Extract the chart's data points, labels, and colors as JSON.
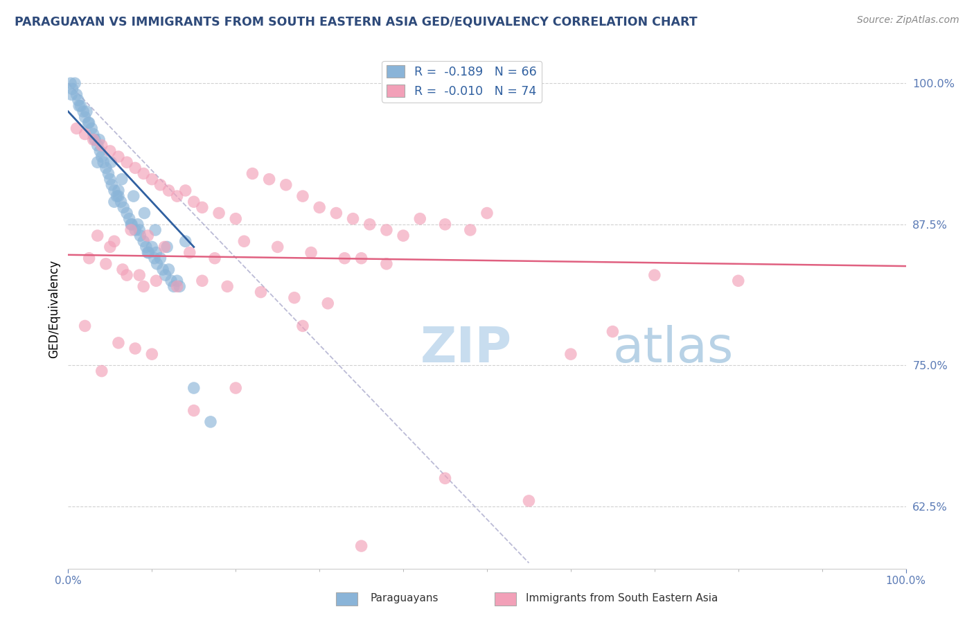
{
  "title": "PARAGUAYAN VS IMMIGRANTS FROM SOUTH EASTERN ASIA GED/EQUIVALENCY CORRELATION CHART",
  "source": "Source: ZipAtlas.com",
  "ylabel": "GED/Equivalency",
  "yticks": [
    62.5,
    75.0,
    87.5,
    100.0
  ],
  "ytick_labels": [
    "62.5%",
    "75.0%",
    "87.5%",
    "100.0%"
  ],
  "title_color": "#2e4a7a",
  "source_color": "#888888",
  "blue_color": "#8ab4d8",
  "pink_color": "#f2a0b8",
  "blue_line_color": "#3060a0",
  "pink_line_color": "#e06080",
  "gray_dash_color": "#aaaacc",
  "axis_label_color": "#5a7ab5",
  "grid_color": "#cccccc",
  "watermark_zip_color": "#c8ddef",
  "watermark_atlas_color": "#9ac0dc",
  "legend_label1": "R =  -0.189   N = 66",
  "legend_label2": "R =  -0.010   N = 74",
  "bottom_label1": "Paraguayans",
  "bottom_label2": "Immigrants from South Eastern Asia",
  "xmin": 0,
  "xmax": 100,
  "ymin": 57,
  "ymax": 103,
  "blue_x": [
    0.3,
    0.5,
    0.8,
    1.0,
    1.2,
    1.5,
    1.8,
    2.0,
    2.2,
    2.5,
    2.8,
    3.0,
    3.2,
    3.5,
    3.8,
    4.0,
    4.2,
    4.5,
    4.8,
    5.0,
    5.2,
    5.5,
    5.8,
    6.0,
    6.3,
    6.6,
    7.0,
    7.3,
    7.6,
    8.0,
    8.3,
    8.6,
    9.0,
    9.3,
    9.6,
    10.0,
    10.3,
    10.6,
    11.0,
    11.3,
    11.6,
    12.0,
    12.3,
    12.6,
    13.0,
    13.3,
    0.4,
    1.3,
    2.4,
    3.7,
    5.1,
    6.4,
    7.8,
    9.1,
    10.4,
    11.8,
    3.5,
    6.0,
    8.5,
    10.5,
    14.0,
    5.5,
    7.5,
    9.5,
    15.0,
    17.0
  ],
  "blue_y": [
    100.0,
    99.5,
    100.0,
    99.0,
    98.5,
    98.0,
    97.5,
    97.0,
    97.5,
    96.5,
    96.0,
    95.5,
    95.0,
    94.5,
    94.0,
    93.5,
    93.0,
    92.5,
    92.0,
    91.5,
    91.0,
    90.5,
    90.0,
    90.5,
    89.5,
    89.0,
    88.5,
    88.0,
    87.5,
    87.0,
    87.5,
    86.5,
    86.0,
    85.5,
    85.0,
    85.5,
    84.5,
    84.0,
    84.5,
    83.5,
    83.0,
    83.5,
    82.5,
    82.0,
    82.5,
    82.0,
    99.0,
    98.0,
    96.5,
    95.0,
    93.0,
    91.5,
    90.0,
    88.5,
    87.0,
    85.5,
    93.0,
    90.0,
    87.0,
    85.0,
    86.0,
    89.5,
    87.5,
    85.0,
    73.0,
    70.0
  ],
  "pink_x": [
    1.0,
    2.0,
    3.0,
    4.0,
    5.0,
    6.0,
    7.0,
    8.0,
    9.0,
    10.0,
    11.0,
    12.0,
    13.0,
    14.0,
    15.0,
    16.0,
    18.0,
    20.0,
    22.0,
    24.0,
    26.0,
    28.0,
    30.0,
    32.0,
    34.0,
    36.0,
    38.0,
    40.0,
    42.0,
    45.0,
    48.0,
    50.0,
    3.5,
    5.5,
    7.5,
    9.5,
    11.5,
    14.5,
    17.5,
    21.0,
    25.0,
    29.0,
    33.0,
    38.0,
    2.5,
    4.5,
    6.5,
    8.5,
    10.5,
    13.0,
    16.0,
    19.0,
    23.0,
    27.0,
    31.0,
    5.0,
    7.0,
    9.0,
    35.0,
    55.0,
    60.0,
    65.0,
    70.0,
    80.0,
    2.0,
    4.0,
    6.0,
    8.0,
    10.0,
    15.0,
    20.0,
    28.0,
    35.0,
    45.0
  ],
  "pink_y": [
    96.0,
    95.5,
    95.0,
    94.5,
    94.0,
    93.5,
    93.0,
    92.5,
    92.0,
    91.5,
    91.0,
    90.5,
    90.0,
    90.5,
    89.5,
    89.0,
    88.5,
    88.0,
    92.0,
    91.5,
    91.0,
    90.0,
    89.0,
    88.5,
    88.0,
    87.5,
    87.0,
    86.5,
    88.0,
    87.5,
    87.0,
    88.5,
    86.5,
    86.0,
    87.0,
    86.5,
    85.5,
    85.0,
    84.5,
    86.0,
    85.5,
    85.0,
    84.5,
    84.0,
    84.5,
    84.0,
    83.5,
    83.0,
    82.5,
    82.0,
    82.5,
    82.0,
    81.5,
    81.0,
    80.5,
    85.5,
    83.0,
    82.0,
    84.5,
    63.0,
    76.0,
    78.0,
    83.0,
    82.5,
    78.5,
    74.5,
    77.0,
    76.5,
    76.0,
    71.0,
    73.0,
    78.5,
    59.0,
    65.0
  ],
  "blue_trend_x": [
    0,
    15
  ],
  "blue_trend_y": [
    97.5,
    85.5
  ],
  "pink_trend_x": [
    0,
    100
  ],
  "pink_trend_y": [
    84.8,
    83.8
  ],
  "gray_trend_x": [
    0,
    55
  ],
  "gray_trend_y": [
    100.0,
    57.5
  ]
}
